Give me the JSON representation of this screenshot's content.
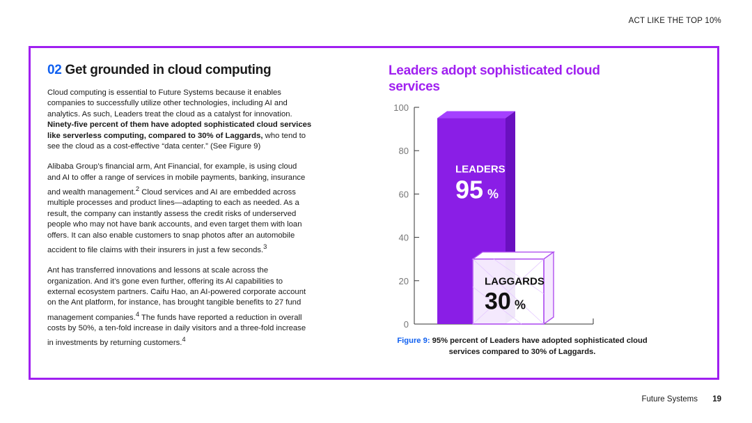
{
  "header": {
    "tag": "ACT LIKE THE TOP 10%"
  },
  "section": {
    "number": "02",
    "title": "Get grounded in cloud computing"
  },
  "paragraphs": {
    "p1_a": "Cloud computing is essential to Future Systems because it enables companies to successfully utilize other technologies, including AI and analytics. As such, Leaders treat the cloud as a catalyst for innovation. ",
    "p1_bold": "Ninety-five percent of them have adopted sophisticated cloud services like serverless computing, compared to 30% of Laggards,",
    "p1_b": " who tend to see the cloud as a cost-effective “data center.” (See Figure 9)",
    "p2_a": "Alibaba Group’s financial arm, Ant Financial, for example, is using cloud and AI to offer a range of services in mobile payments, banking, insurance and wealth management.",
    "p2_sup": "2",
    "p2_b": " Cloud services and AI are embedded across multiple processes and product lines—adapting to each as needed. As a result, the company can instantly assess the credit risks of underserved people who may not have bank accounts, and even target them with loan offers. It can also enable customers to snap photos after an automobile accident to file claims with their insurers in just a few seconds.",
    "p2_sup2": "3",
    "p3_a": "Ant has transferred innovations and lessons at scale across the organization. And it’s gone even further, offering its AI capabilities to external ecosystem partners. Caifu Hao, an AI-powered corporate account on the Ant platform, for instance, has brought tangible benefits to 27 fund management companies.",
    "p3_sup": "4",
    "p3_b": " The funds have reported a reduction in overall costs by 50%, a ten-fold increase in daily visitors and a three-fold increase in investments by returning customers.",
    "p3_sup2": "4"
  },
  "chart_data": {
    "type": "bar",
    "title": "Leaders adopt sophisticated cloud services",
    "categories": [
      "LEADERS",
      "LAGGARDS"
    ],
    "values": [
      95,
      30
    ],
    "value_labels": [
      "95",
      "30"
    ],
    "value_suffix": "%",
    "ylim": [
      0,
      100
    ],
    "yticks": [
      "0",
      "20",
      "40",
      "60",
      "80",
      "100"
    ],
    "colors": {
      "leaders": "#8a1ee6",
      "laggards_outline": "#b050f0",
      "axis": "#333333"
    }
  },
  "caption": {
    "figure": "Figure 9:",
    "text": " 95% percent of Leaders have adopted sophisticated cloud services compared to 30% of Laggards."
  },
  "footer": {
    "label": "Future Systems",
    "page": "19"
  }
}
